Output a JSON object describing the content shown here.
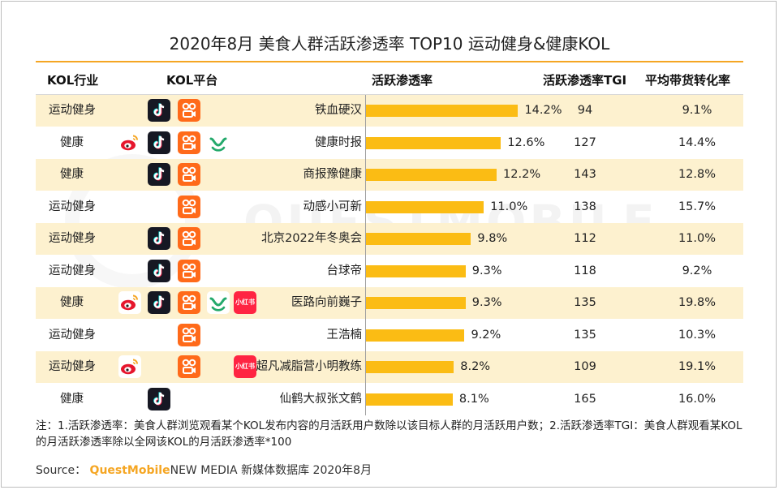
{
  "title": "2020年8月 美食人群活跃渗透率 TOP10 运动健身&健康KOL",
  "headers": {
    "industry": "KOL行业",
    "platform": "KOL平台",
    "penetration": "活跃渗透率",
    "tgi": "活跃渗透率TGI",
    "conversion": "平均带货转化率"
  },
  "chart_data": {
    "type": "bar",
    "orientation": "horizontal",
    "title": "2020年8月 美食人群活跃渗透率 TOP10 运动健身&健康KOL",
    "categories": [
      "铁血硬汉",
      "健康时报",
      "商报豫健康",
      "动感小可新",
      "北京2022年冬奥会",
      "台球帝",
      "医路向前巍子",
      "王浩楠",
      "超凡减脂营小明教练",
      "仙鹤大叔张文鹤"
    ],
    "series": [
      {
        "name": "活跃渗透率",
        "values": [
          14.2,
          12.6,
          12.2,
          11.0,
          9.8,
          9.3,
          9.3,
          9.2,
          8.2,
          8.1
        ]
      }
    ],
    "value_labels": [
      "14.2%",
      "12.6%",
      "12.2%",
      "11.0%",
      "9.8%",
      "9.3%",
      "9.3%",
      "9.2%",
      "8.2%",
      "8.1%"
    ],
    "xlim": [
      0,
      25
    ],
    "grid": false,
    "bar_color": "#fbbc14"
  },
  "rows": [
    {
      "industry": "运动健身",
      "platforms": [
        "douyin-icon",
        "kuaishou-icon"
      ],
      "kol": "铁血硬汉",
      "tgi": "94",
      "conversion": "9.1%"
    },
    {
      "industry": "健康",
      "platforms": [
        "weibo-icon",
        "douyin-icon",
        "kuaishou-icon",
        "wechat-video-icon"
      ],
      "kol": "健康时报",
      "tgi": "127",
      "conversion": "14.4%"
    },
    {
      "industry": "健康",
      "platforms": [
        "douyin-icon",
        "kuaishou-icon"
      ],
      "kol": "商报豫健康",
      "tgi": "143",
      "conversion": "12.8%"
    },
    {
      "industry": "运动健身",
      "platforms": [
        "kuaishou-icon"
      ],
      "kol": "动感小可新",
      "tgi": "138",
      "conversion": "15.7%"
    },
    {
      "industry": "运动健身",
      "platforms": [
        "douyin-icon",
        "kuaishou-icon"
      ],
      "kol": "北京2022年冬奥会",
      "tgi": "112",
      "conversion": "11.0%"
    },
    {
      "industry": "运动健身",
      "platforms": [
        "douyin-icon",
        "kuaishou-icon"
      ],
      "kol": "台球帝",
      "tgi": "118",
      "conversion": "9.2%"
    },
    {
      "industry": "健康",
      "platforms": [
        "weibo-icon",
        "douyin-icon",
        "kuaishou-icon",
        "wechat-video-icon",
        "xiaohongshu-icon"
      ],
      "kol": "医路向前巍子",
      "tgi": "135",
      "conversion": "19.8%"
    },
    {
      "industry": "运动健身",
      "platforms": [
        "kuaishou-icon"
      ],
      "kol": "王浩楠",
      "tgi": "135",
      "conversion": "10.3%"
    },
    {
      "industry": "运动健身",
      "platforms": [
        "weibo-icon",
        "kuaishou-icon",
        "xiaohongshu-icon"
      ],
      "kol": "超凡减脂营小明教练",
      "tgi": "109",
      "conversion": "19.1%"
    },
    {
      "industry": "健康",
      "platforms": [
        "douyin-icon"
      ],
      "kol": "仙鹤大叔张文鹤",
      "tgi": "165",
      "conversion": "16.0%"
    }
  ],
  "xhs_label": "小红书",
  "watermark": "QUESTMOBILE",
  "note": "注：1.活跃渗透率：美食人群浏览观看某个KOL发布内容的月活跃用户数除以该目标人群的月活跃用户数；2.活跃渗透率TGI：美食人群观看某KOL的月活跃渗透率除以全网该KOL的月活跃渗透率*100",
  "source": {
    "prefix": "Source：",
    "brand": "QuestMobile",
    "suffix": "NEW MEDIA 新媒体数据库 2020年8月"
  },
  "colors": {
    "accent": "#f5a623",
    "bar": "#fbbc14",
    "band": "#fdf1cf"
  }
}
